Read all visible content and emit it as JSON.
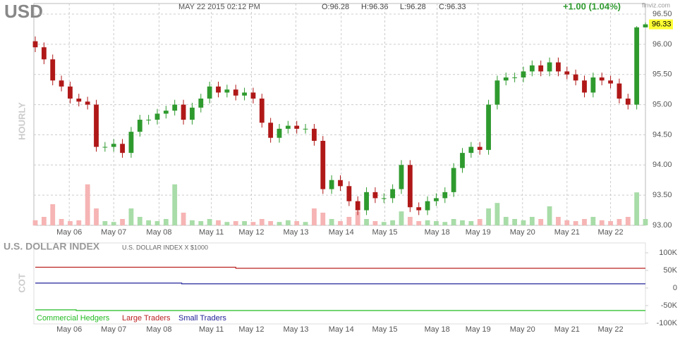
{
  "chart_data": [
    {
      "type": "candlestick",
      "title": "USD",
      "subtitle": "MAY 22 2015 02:12 PM",
      "ohlc_labels": [
        "O:96.28",
        "H:96.36",
        "L:96.28",
        "C:96.33"
      ],
      "change": "+1.00 (1.04%)",
      "source": "finviz.com",
      "ylabel": "HOURLY",
      "up_color": "#2e9a2e",
      "down_color": "#b01818",
      "volume_up_color": "#a8dca8",
      "volume_down_color": "#f6b4b4",
      "xlim": [
        0,
        70
      ],
      "ylim": [
        93.0,
        96.5
      ],
      "volume_lim": [
        0,
        100
      ],
      "grid": true,
      "xticks": [
        {
          "value": 3.9,
          "label": "May 06"
        },
        {
          "value": 9.0,
          "label": "May 07"
        },
        {
          "value": 14.2,
          "label": "May 08"
        },
        {
          "value": 20.2,
          "label": "May 11"
        },
        {
          "value": 24.8,
          "label": "May 12"
        },
        {
          "value": 29.9,
          "label": "May 13"
        },
        {
          "value": 35.1,
          "label": "May 14"
        },
        {
          "value": 40.1,
          "label": "May 15"
        },
        {
          "value": 46.1,
          "label": "May 18"
        },
        {
          "value": 50.8,
          "label": "May 19"
        },
        {
          "value": 55.9,
          "label": "May 20"
        },
        {
          "value": 61.0,
          "label": "May 21"
        },
        {
          "value": 66.0,
          "label": "May 22"
        }
      ],
      "yticks": [
        {
          "value": 93.0,
          "label": "93.00"
        },
        {
          "value": 93.5,
          "label": "93.50"
        },
        {
          "value": 94.0,
          "label": "94.00"
        },
        {
          "value": 94.5,
          "label": "94.50"
        },
        {
          "value": 95.0,
          "label": "95.00"
        },
        {
          "value": 95.5,
          "label": "95.50"
        },
        {
          "value": 96.0,
          "label": "96.00"
        },
        {
          "value": 96.5,
          "label": "96.50"
        }
      ],
      "open": [
        96.05,
        95.95,
        95.75,
        95.4,
        95.3,
        95.1,
        95.05,
        95.0,
        94.3,
        94.3,
        94.35,
        94.2,
        94.55,
        94.75,
        94.75,
        94.85,
        94.9,
        95.0,
        94.75,
        94.95,
        95.1,
        95.3,
        95.2,
        95.25,
        95.15,
        95.2,
        95.1,
        94.7,
        94.45,
        94.6,
        94.65,
        94.6,
        94.6,
        94.4,
        93.6,
        93.75,
        93.65,
        93.4,
        93.25,
        93.55,
        93.45,
        93.45,
        93.6,
        94.0,
        93.3,
        93.25,
        93.4,
        93.45,
        93.55,
        93.95,
        94.2,
        94.3,
        94.25,
        95.0,
        95.4,
        95.45,
        95.45,
        95.55,
        95.65,
        95.55,
        95.7,
        95.55,
        95.5,
        95.4,
        95.2,
        95.45,
        95.4,
        95.35,
        95.1,
        95.0,
        96.28
      ],
      "high": [
        96.13,
        96.03,
        95.83,
        95.48,
        95.38,
        95.18,
        95.13,
        95.08,
        94.38,
        94.43,
        94.43,
        94.63,
        94.83,
        94.83,
        94.93,
        94.98,
        95.08,
        95.08,
        95.03,
        95.18,
        95.38,
        95.38,
        95.33,
        95.33,
        95.28,
        95.28,
        95.18,
        94.78,
        94.68,
        94.73,
        94.73,
        94.68,
        94.68,
        94.48,
        93.83,
        93.83,
        93.73,
        93.48,
        93.63,
        93.63,
        93.53,
        93.68,
        94.08,
        94.08,
        93.38,
        93.48,
        93.53,
        93.63,
        94.03,
        94.28,
        94.38,
        94.38,
        95.08,
        95.48,
        95.53,
        95.53,
        95.63,
        95.73,
        95.73,
        95.78,
        95.78,
        95.63,
        95.58,
        95.48,
        95.53,
        95.53,
        95.48,
        95.43,
        95.18,
        96.3,
        96.36
      ],
      "low": [
        95.87,
        95.67,
        95.32,
        95.22,
        95.02,
        94.97,
        94.92,
        94.22,
        94.22,
        94.22,
        94.12,
        94.12,
        94.47,
        94.67,
        94.67,
        94.77,
        94.82,
        94.67,
        94.67,
        94.87,
        95.02,
        95.12,
        95.12,
        95.07,
        95.07,
        95.02,
        94.62,
        94.37,
        94.37,
        94.52,
        94.52,
        94.52,
        94.32,
        93.52,
        93.52,
        93.57,
        93.32,
        93.17,
        93.17,
        93.37,
        93.37,
        93.37,
        93.52,
        93.22,
        93.17,
        93.17,
        93.32,
        93.37,
        93.47,
        93.87,
        94.12,
        94.17,
        94.17,
        94.92,
        95.32,
        95.37,
        95.37,
        95.47,
        95.47,
        95.47,
        95.47,
        95.42,
        95.32,
        95.12,
        95.12,
        95.32,
        95.27,
        95.02,
        94.92,
        94.92,
        96.28
      ],
      "close": [
        95.95,
        95.75,
        95.4,
        95.3,
        95.1,
        95.05,
        95.0,
        94.3,
        94.3,
        94.35,
        94.2,
        94.55,
        94.75,
        94.75,
        94.85,
        94.9,
        95.0,
        94.75,
        94.95,
        95.1,
        95.3,
        95.2,
        95.25,
        95.15,
        95.2,
        95.1,
        94.7,
        94.45,
        94.6,
        94.65,
        94.6,
        94.6,
        94.4,
        93.6,
        93.75,
        93.65,
        93.4,
        93.25,
        93.55,
        93.45,
        93.45,
        93.6,
        94.0,
        93.3,
        93.25,
        93.4,
        93.45,
        93.55,
        93.95,
        94.2,
        94.3,
        94.25,
        95.0,
        95.4,
        95.45,
        95.45,
        95.55,
        95.65,
        95.55,
        95.7,
        95.55,
        95.5,
        95.4,
        95.2,
        95.45,
        95.4,
        95.35,
        95.1,
        95.0,
        96.28,
        96.33
      ],
      "volume": [
        12,
        20,
        50,
        15,
        10,
        12,
        97,
        40,
        10,
        8,
        15,
        40,
        20,
        12,
        10,
        15,
        97,
        30,
        12,
        10,
        15,
        12,
        8,
        10,
        10,
        8,
        15,
        10,
        8,
        12,
        10,
        8,
        40,
        30,
        15,
        10,
        20,
        33,
        15,
        10,
        8,
        12,
        33,
        20,
        10,
        12,
        10,
        8,
        15,
        12,
        10,
        15,
        40,
        53,
        20,
        15,
        12,
        20,
        15,
        45,
        20,
        12,
        10,
        15,
        20,
        12,
        10,
        15,
        20,
        78,
        15
      ]
    },
    {
      "type": "line",
      "title": "U.S. DOLLAR INDEX",
      "subtitle": "U.S. DOLLAR INDEX X $1000",
      "ylabel": "COT",
      "xlim": [
        0,
        70
      ],
      "ylim": [
        -100000,
        100000
      ],
      "xticks": [
        {
          "value": 3.9,
          "label": "May 06"
        },
        {
          "value": 9.0,
          "label": "May 07"
        },
        {
          "value": 14.2,
          "label": "May 08"
        },
        {
          "value": 20.2,
          "label": "May 11"
        },
        {
          "value": 24.8,
          "label": "May 12"
        },
        {
          "value": 29.9,
          "label": "May 13"
        },
        {
          "value": 35.1,
          "label": "May 14"
        },
        {
          "value": 40.1,
          "label": "May 15"
        },
        {
          "value": 46.1,
          "label": "May 18"
        },
        {
          "value": 50.8,
          "label": "May 19"
        },
        {
          "value": 55.9,
          "label": "May 20"
        },
        {
          "value": 61.0,
          "label": "May 21"
        },
        {
          "value": 66.0,
          "label": "May 22"
        }
      ],
      "yticks": [
        {
          "value": 100000,
          "label": "100K"
        },
        {
          "value": 50000,
          "label": "50K"
        },
        0,
        {
          "value": -50000,
          "label": "-50K"
        },
        {
          "value": -100000,
          "label": "-100K"
        }
      ],
      "series": [
        {
          "name": "Commercial Hedgers",
          "color": "#22bb22",
          "x": [
            0,
            4.7,
            70
          ],
          "values": [
            -62000,
            -64000,
            -64000
          ]
        },
        {
          "name": "Large Traders",
          "color": "#bb2222",
          "x": [
            0,
            23,
            70
          ],
          "values": [
            59000,
            56000,
            56000
          ]
        },
        {
          "name": "Small Traders",
          "color": "#222299",
          "x": [
            0,
            16.8,
            70
          ],
          "values": [
            14000,
            12000,
            12000
          ]
        }
      ]
    }
  ]
}
